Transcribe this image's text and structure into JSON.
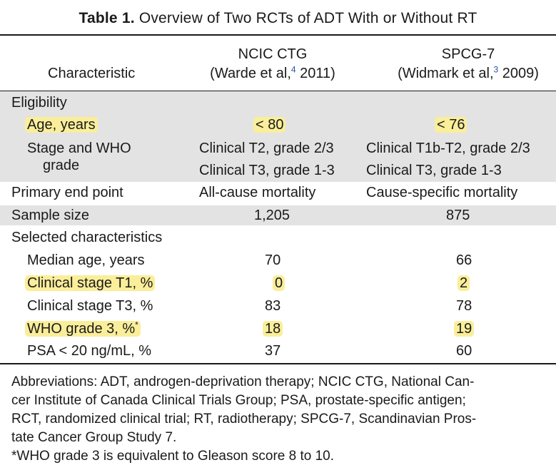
{
  "table": {
    "title_label": "Table 1.",
    "title_text": "Overview of Two RCTs of ADT With or Without RT",
    "columns": {
      "characteristic": "Characteristic",
      "ncic_name": "NCIC CTG",
      "ncic_ref_prefix": "(Warde et al,",
      "ncic_ref_num": "4",
      "ncic_ref_year": "2011)",
      "spcg_name": "SPCG-7",
      "spcg_ref_prefix": "(Widmark et al,",
      "spcg_ref_num": "3",
      "spcg_ref_year": "2009)"
    },
    "eligibility": {
      "label": "Eligibility",
      "age_label": "Age, years",
      "age_ncic": "< 80",
      "age_spcg": "< 76",
      "stage_label_1": "Stage and WHO",
      "stage_label_2": "grade",
      "stage_ncic_1": "Clinical T2, grade 2/3",
      "stage_ncic_2": "Clinical T3, grade 1-3",
      "stage_spcg_1": "Clinical T1b-T2, grade 2/3",
      "stage_spcg_2": "Clinical T3, grade 1-3"
    },
    "primary_end_point": {
      "label": "Primary end point",
      "ncic": "All-cause mortality",
      "spcg": "Cause-specific mortality"
    },
    "sample_size": {
      "label": "Sample size",
      "ncic": "1,205",
      "spcg": "875"
    },
    "selected": {
      "label": "Selected characteristics",
      "rows": [
        {
          "label": "Median age, years",
          "ncic": "70",
          "spcg": "66"
        },
        {
          "label": "Clinical stage T1, %",
          "ncic": "0",
          "spcg": "2"
        },
        {
          "label": "Clinical stage T3, %",
          "ncic": "83",
          "spcg": "78"
        },
        {
          "label": "WHO grade 3, %",
          "ncic": "18",
          "spcg": "19"
        },
        {
          "label": "PSA < 20 ng/mL, %",
          "ncic": "37",
          "spcg": "60"
        }
      ],
      "who_marker": "*"
    },
    "footnotes": {
      "abbreviations_1": "Abbreviations: ADT, androgen-deprivation therapy; NCIC CTG, National Can-",
      "abbreviations_2": "cer Institute of Canada Clinical Trials Group; PSA, prostate-specific antigen;",
      "abbreviations_3": "RCT, randomized clinical trial; RT, radiotherapy; SPCG-7, Scandinavian Pros-",
      "abbreviations_4": "tate Cancer Group Study 7.",
      "who_note": "*WHO grade 3 is equivalent to Gleason score 8 to 10."
    },
    "colors": {
      "band": "#e3e3e3",
      "highlight": "#faee9a",
      "reference": "#2a4ea8"
    }
  }
}
